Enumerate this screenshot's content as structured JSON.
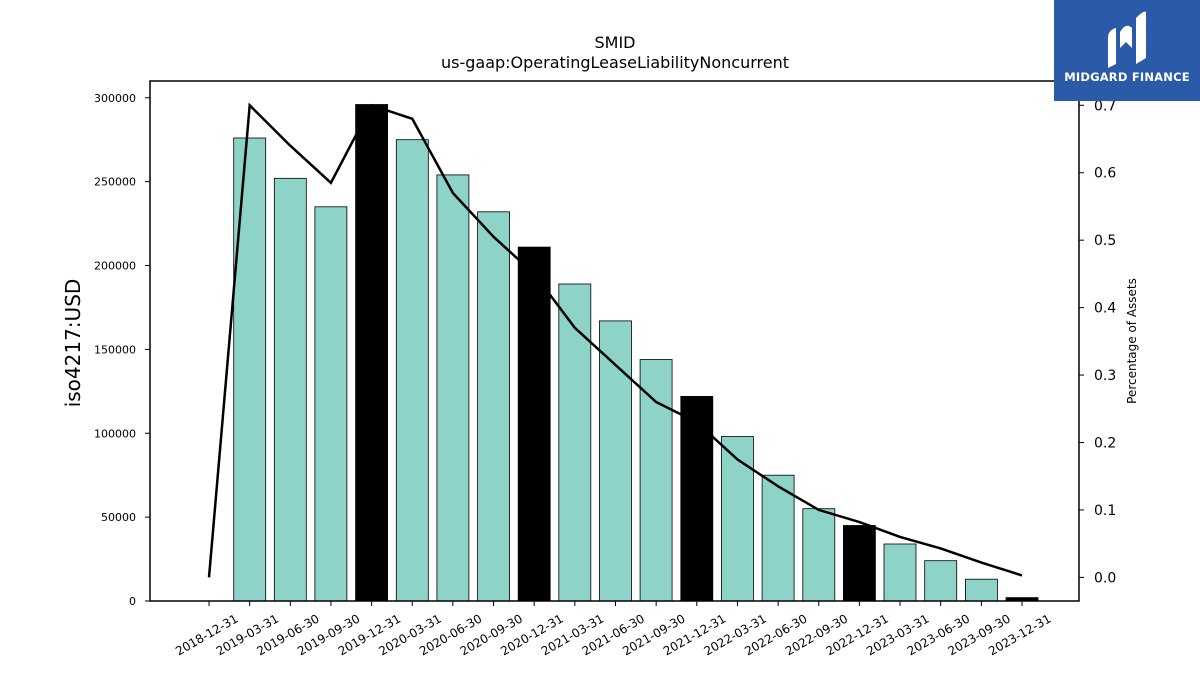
{
  "chart_data": {
    "type": "bar",
    "title": "SMID",
    "subtitle": "us-gaap:OperatingLeaseLiabilityNoncurrent",
    "ylabel": "iso4217:USD",
    "y2label": "Percentage of Assets",
    "ylim": [
      0,
      310000
    ],
    "y2lim": [
      -0.035,
      0.736
    ],
    "yticks": [
      0,
      50000,
      100000,
      150000,
      200000,
      250000,
      300000
    ],
    "yticks_labels": [
      "0",
      "50000",
      "100000",
      "150000",
      "200000",
      "250000",
      "300000"
    ],
    "y2ticks": [
      0.0,
      0.1,
      0.2,
      0.3,
      0.4,
      0.5,
      0.6,
      0.7
    ],
    "y2ticks_labels": [
      "0.0",
      "0.1",
      "0.2",
      "0.3",
      "0.4",
      "0.5",
      "0.6",
      "0.7"
    ],
    "categories": [
      "2018-12-31",
      "2019-03-31",
      "2019-06-30",
      "2019-09-30",
      "2019-12-31",
      "2020-03-31",
      "2020-06-30",
      "2020-09-30",
      "2020-12-31",
      "2021-03-31",
      "2021-06-30",
      "2021-09-30",
      "2021-12-31",
      "2022-03-31",
      "2022-06-30",
      "2022-09-30",
      "2022-12-31",
      "2023-03-31",
      "2023-06-30",
      "2023-09-30",
      "2023-12-31"
    ],
    "series": [
      {
        "type": "bar",
        "values": [
          0,
          276000,
          252000,
          235000,
          296000,
          275000,
          254000,
          232000,
          211000,
          189000,
          167000,
          144000,
          122000,
          98000,
          75000,
          55000,
          45000,
          34000,
          24000,
          13000,
          2000
        ],
        "color": "#8dd3c7",
        "highlight_color": "#000000",
        "highlight_categories": [
          "2019-12-31",
          "2020-12-31",
          "2021-12-31",
          "2022-12-31",
          "2023-12-31"
        ]
      },
      {
        "type": "line",
        "axis": "right",
        "values": [
          0.0,
          0.7,
          0.64,
          0.585,
          0.7,
          0.68,
          0.57,
          0.505,
          0.45,
          0.37,
          0.315,
          0.26,
          0.23,
          0.175,
          0.135,
          0.1,
          0.082,
          0.06,
          0.043,
          0.022,
          0.003
        ],
        "color": "#000000"
      }
    ],
    "grid": false,
    "legend": "none"
  },
  "logo": {
    "text": "MIDGARD FINANCE",
    "background": "#2b5aa8",
    "icon": "midgard-logo-icon"
  }
}
